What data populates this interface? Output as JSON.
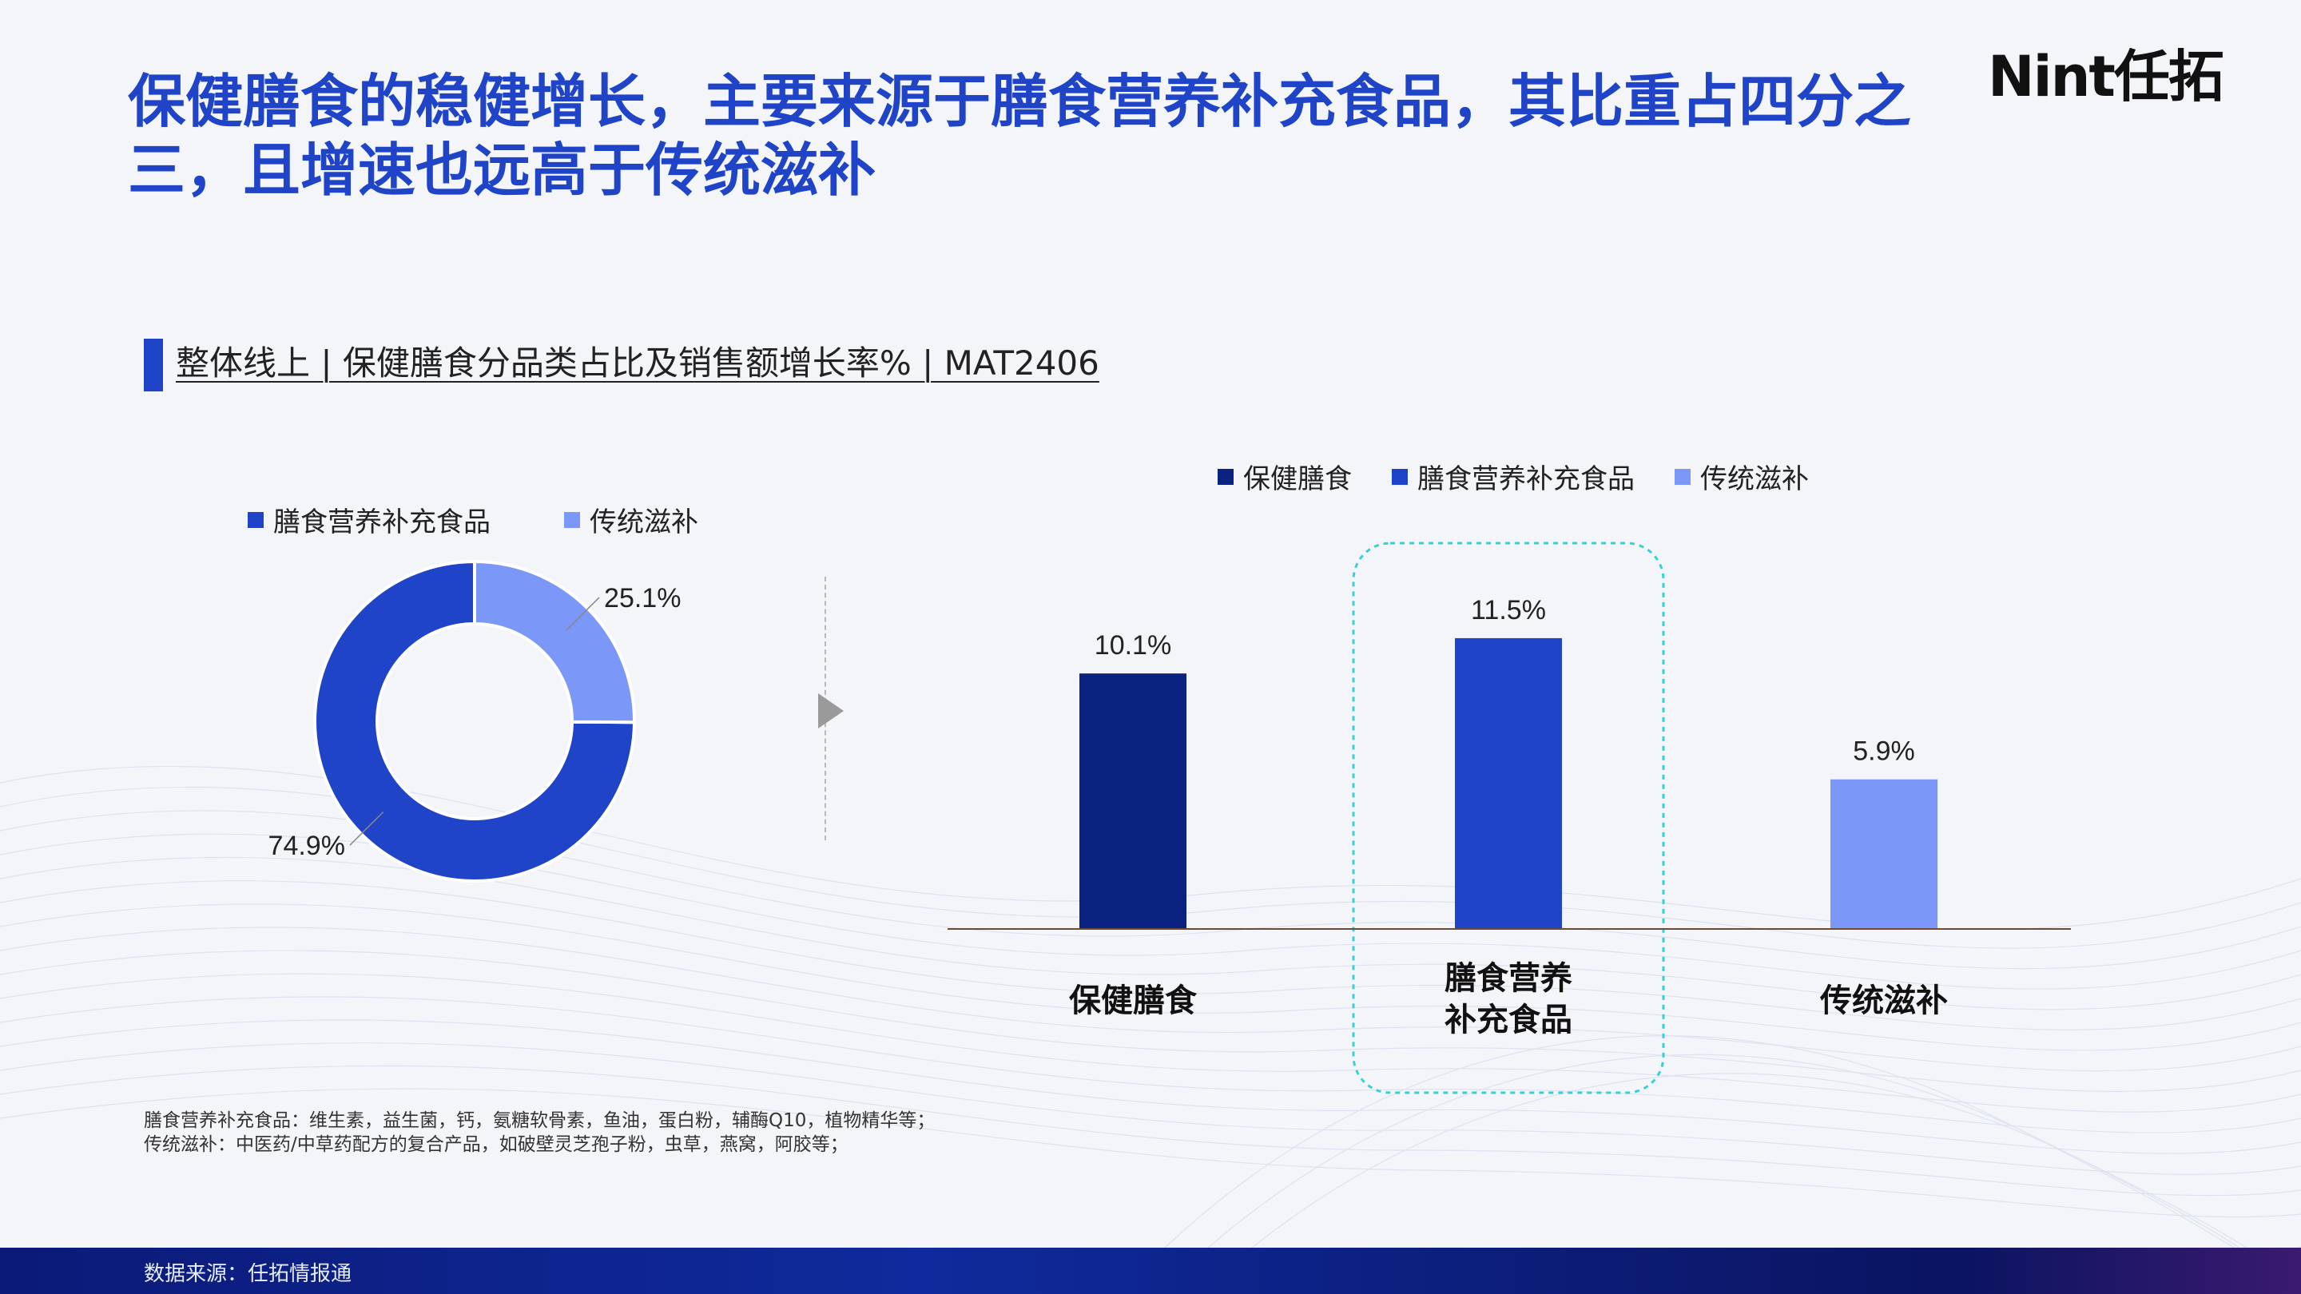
{
  "header": {
    "title": "保健膳食的稳健增长，主要来源于膳食营养补充食品，其比重占四分之三，且增速也远高于传统滋补",
    "logo_text": "Nint任拓"
  },
  "section": {
    "title": "整体线上 | 保健膳食分品类占比及销售额增长率% | MAT2406"
  },
  "colors": {
    "accent": "#1f44c8",
    "dark_navy": "#0a2380",
    "blue": "#1f44c8",
    "light_blue": "#7b97f7",
    "highlight": "#36d1d6"
  },
  "chart_data": [
    {
      "type": "pie",
      "donut": true,
      "title": "",
      "legend_position": "top",
      "slices": [
        {
          "name": "膳食营养补充食品",
          "value": 74.9,
          "label": "74.9%",
          "color": "#1f44c8"
        },
        {
          "name": "传统滋补",
          "value": 25.1,
          "label": "25.1%",
          "color": "#7b97f7"
        }
      ]
    },
    {
      "type": "bar",
      "title": "",
      "legend_position": "top",
      "xlabel": "",
      "ylabel": "",
      "ylim": [
        0,
        14
      ],
      "grid": false,
      "categories": [
        "保健膳食",
        "膳食营养\n补充食品",
        "传统滋补"
      ],
      "series": [
        {
          "name": "保健膳食",
          "color": "#0a2380"
        },
        {
          "name": "膳食营养补充食品",
          "color": "#1f44c8"
        },
        {
          "name": "传统滋补",
          "color": "#7b97f7"
        }
      ],
      "values": [
        10.1,
        11.5,
        5.9
      ],
      "labels": [
        "10.1%",
        "11.5%",
        "5.9%"
      ],
      "bar_colors": [
        "#0a2380",
        "#1f44c8",
        "#7b97f7"
      ],
      "highlight_index": 1
    }
  ],
  "notes": [
    "膳食营养补充食品：维生素，益生菌，钙，氨糖软骨素，鱼油，蛋白粉，辅酶Q10，植物精华等；",
    "传统滋补：中医药/中草药配方的复合产品，如破壁灵芝孢子粉，虫草，燕窝，阿胶等；"
  ],
  "footer": {
    "source": "数据来源：任拓情报通"
  }
}
